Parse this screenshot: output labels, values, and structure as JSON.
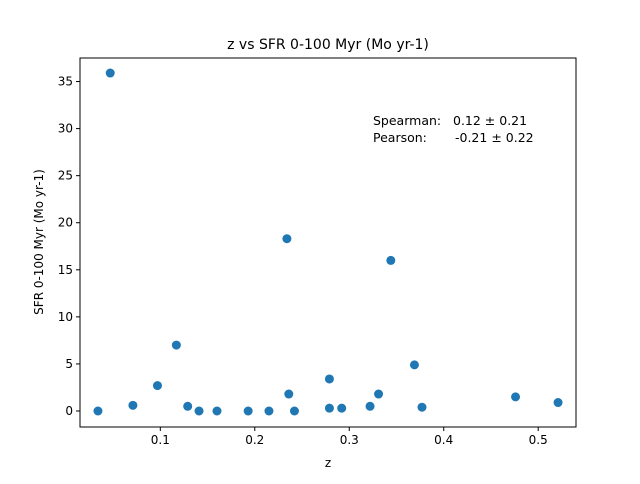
{
  "chart_data": {
    "type": "scatter",
    "title": "z vs SFR 0-100 Myr (Mo yr-1)",
    "xlabel": "z",
    "ylabel": "SFR 0-100 Myr (Mo yr-1)",
    "xlim": [
      0.015,
      0.54
    ],
    "ylim": [
      -1.7,
      37.5
    ],
    "x_ticks": [
      0.1,
      0.2,
      0.3,
      0.4,
      0.5
    ],
    "x_tick_labels": [
      "0.1",
      "0.2",
      "0.3",
      "0.4",
      "0.5"
    ],
    "y_ticks": [
      0,
      5,
      10,
      15,
      20,
      25,
      30,
      35
    ],
    "y_tick_labels": [
      "0",
      "5",
      "10",
      "15",
      "20",
      "25",
      "30",
      "35"
    ],
    "grid": false,
    "marker_color": "#1f77b4",
    "annotations": [
      {
        "label": "Spearman:",
        "value": "0.12 ± 0.21"
      },
      {
        "label": "Pearson:",
        "value": "-0.21 ± 0.22"
      }
    ],
    "series": [
      {
        "points": [
          {
            "x": 0.034,
            "y": 0.0
          },
          {
            "x": 0.047,
            "y": 35.9
          },
          {
            "x": 0.071,
            "y": 0.6
          },
          {
            "x": 0.097,
            "y": 2.7
          },
          {
            "x": 0.117,
            "y": 7.0
          },
          {
            "x": 0.129,
            "y": 0.5
          },
          {
            "x": 0.141,
            "y": 0.0
          },
          {
            "x": 0.16,
            "y": 0.0
          },
          {
            "x": 0.193,
            "y": 0.0
          },
          {
            "x": 0.215,
            "y": 0.0
          },
          {
            "x": 0.234,
            "y": 18.3
          },
          {
            "x": 0.236,
            "y": 1.8
          },
          {
            "x": 0.242,
            "y": 0.0
          },
          {
            "x": 0.279,
            "y": 3.4
          },
          {
            "x": 0.279,
            "y": 0.3
          },
          {
            "x": 0.292,
            "y": 0.3
          },
          {
            "x": 0.322,
            "y": 0.5
          },
          {
            "x": 0.331,
            "y": 1.8
          },
          {
            "x": 0.344,
            "y": 16.0
          },
          {
            "x": 0.369,
            "y": 4.9
          },
          {
            "x": 0.377,
            "y": 0.4
          },
          {
            "x": 0.476,
            "y": 1.5
          },
          {
            "x": 0.521,
            "y": 0.9
          }
        ]
      }
    ]
  }
}
